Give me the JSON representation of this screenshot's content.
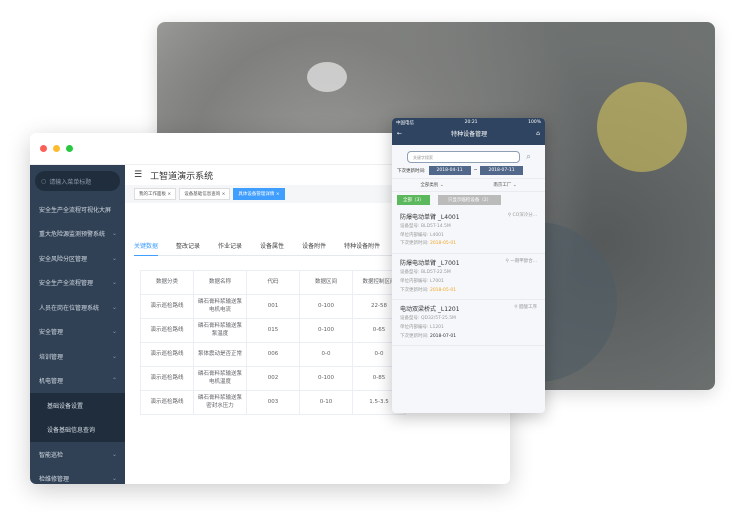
{
  "colors": {
    "sidebar": "#304156",
    "accent": "#409eff",
    "phone_nav": "#2e4460",
    "green": "#5cb85c",
    "warning": "#f5a623"
  },
  "desktop": {
    "title": "工智道演示系统",
    "search_placeholder": "请输入菜单标题",
    "menu": [
      {
        "label": "安全生产全流程可视化大屏",
        "chevron": false
      },
      {
        "label": "重大危险源监测预警系统",
        "chevron": true
      },
      {
        "label": "安全风险分区管理",
        "chevron": true
      },
      {
        "label": "安全生产全流程管理",
        "chevron": true
      },
      {
        "label": "人员在岗在位管理系统",
        "chevron": true
      },
      {
        "label": "安全管理",
        "chevron": true
      },
      {
        "label": "培训管理",
        "chevron": true
      },
      {
        "label": "机电管理",
        "chevron": true,
        "expanded": true
      },
      {
        "label": "基础设备设置",
        "sub": true
      },
      {
        "label": "设备基础信息查询",
        "sub": true
      },
      {
        "label": "智能巡检",
        "chevron": true
      },
      {
        "label": "检维修管理",
        "chevron": true
      }
    ],
    "tags": [
      "我的工作面板",
      "设备基础信息查询",
      "具体设备管理详情"
    ],
    "tabs": [
      "关键数据",
      "整改记录",
      "作业记录",
      "设备属性",
      "设备附件",
      "特种设备附件"
    ],
    "table": {
      "headers": [
        "数据分类",
        "数据名称",
        "代码",
        "数据区间",
        "数据控制区间"
      ],
      "rows": [
        [
          "演示巡检路线",
          "磷石膏料浆输送泵电机电流",
          "001",
          "0-100",
          "22-58"
        ],
        [
          "演示巡检路线",
          "磷石膏料浆输送泵泵温度",
          "015",
          "0-100",
          "0-65"
        ],
        [
          "演示巡检路线",
          "泵体震动是否正常",
          "006",
          "0-0",
          "0-0"
        ],
        [
          "演示巡检路线",
          "磷石膏料浆输送泵电机温度",
          "002",
          "0-100",
          "0-85"
        ],
        [
          "演示巡检路线",
          "磷石膏料浆输送泵密封水压力",
          "003",
          "0-10",
          "1.5-3.5"
        ]
      ]
    }
  },
  "mobile": {
    "carrier": "中国电信",
    "time": "20:21",
    "battery": "100%",
    "title": "特种设备管理",
    "search_placeholder": "关键字搜索",
    "next_update_label": "下次更新时间:",
    "date_from": "2018-04-11",
    "date_to": "2018-07-11",
    "filter_category": "全部类别",
    "filter_factory": "南京工厂",
    "btn_all": "全部（3）",
    "btn_overdue": "只显示临检设备（2）",
    "items": [
      {
        "name": "防爆电动单臂 _L4001",
        "location": "CO深冷分...",
        "model_label": "设备型号:",
        "model": "BLD5T-14.5M",
        "code_label": "单位内部编号:",
        "code": "L4001",
        "next_label": "下次更新时间:",
        "next": "2018-05-01",
        "overdue": true
      },
      {
        "name": "防爆电动单臂 _L7001",
        "location": "一期甲醇合...",
        "model_label": "设备型号:",
        "model": "BLD5T-22.5M",
        "code_label": "单位内部编号:",
        "code": "L7001",
        "next_label": "下次更新时间:",
        "next": "2018-05-01",
        "overdue": true
      },
      {
        "name": "电动双梁桥式 _L1201",
        "location": "醋酸工序",
        "model_label": "设备型号:",
        "model": "QD32/5T-25.5M",
        "code_label": "单位内部编号:",
        "code": "L1201",
        "next_label": "下次更新时间:",
        "next": "2018-07-01",
        "overdue": false
      }
    ]
  }
}
